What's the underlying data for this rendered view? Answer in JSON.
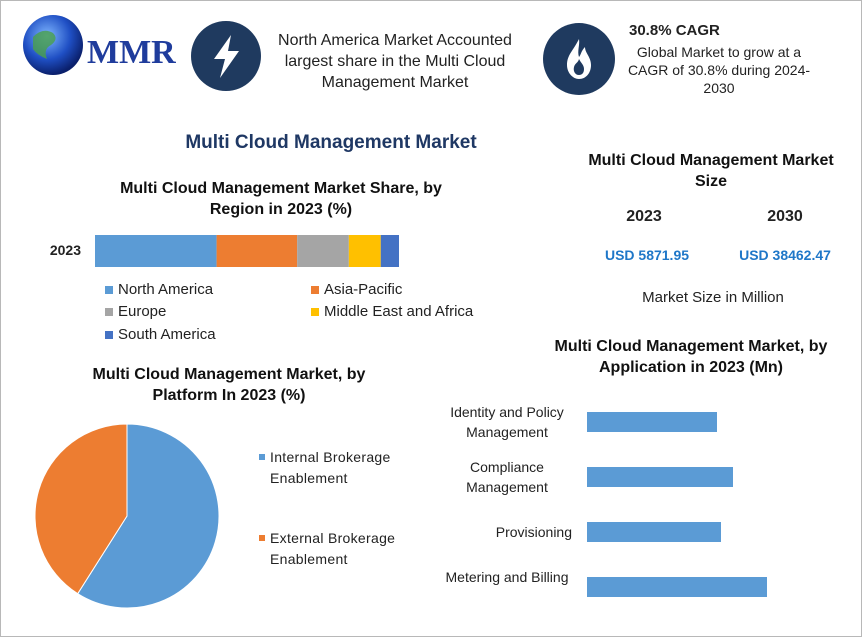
{
  "header": {
    "logo": "MMR",
    "highlight": "North America Market Accounted largest share in the Multi Cloud Management Market",
    "cagr_title": "30.8% CAGR",
    "cagr_text": "Global Market to grow at a CAGR of 30.8% during 2024-2030"
  },
  "title": "Multi Cloud Management Market",
  "market_size": {
    "title": "Multi Cloud Management Market Size",
    "columns": [
      "2023",
      "2030"
    ],
    "values": [
      "USD 5871.95",
      "USD 38462.47"
    ],
    "note": "Market Size in Million"
  },
  "chart_data": [
    {
      "type": "bar",
      "orientation": "horizontal",
      "stacked": true,
      "title": "Multi Cloud Management Market Share, by Region in 2023 (%)",
      "categories": [
        "2023"
      ],
      "series": [
        {
          "name": "North America",
          "color": "#5b9bd5",
          "values": [
            40
          ]
        },
        {
          "name": "Asia-Pacific",
          "color": "#ed7d31",
          "values": [
            26.5
          ]
        },
        {
          "name": "Europe",
          "color": "#a5a5a5",
          "values": [
            17
          ]
        },
        {
          "name": "Middle East and Africa",
          "color": "#ffc000",
          "values": [
            10.5
          ]
        },
        {
          "name": "South America",
          "color": "#4472c4",
          "values": [
            6
          ]
        }
      ],
      "xlim": [
        0,
        100
      ],
      "legend": "bottom"
    },
    {
      "type": "pie",
      "title": "Multi Cloud Management Market, by Platform In 2023 (%)",
      "categories": [
        "Internal Brokerage Enablement",
        "External Brokerage Enablement"
      ],
      "values": [
        59,
        41
      ],
      "colors": [
        "#5b9bd5",
        "#ed7d31"
      ],
      "legend": "right"
    },
    {
      "type": "bar",
      "orientation": "horizontal",
      "stacked": false,
      "title": "Multi Cloud Management Market, by Application in 2023 (Mn)",
      "categories": [
        "Identity and Policy Management",
        "Compliance Management",
        "Provisioning",
        "Metering and Billing"
      ],
      "values": [
        1300,
        1460,
        1340,
        1800
      ],
      "color": "#5b9bd5",
      "xlim": [
        0,
        2500
      ]
    }
  ]
}
